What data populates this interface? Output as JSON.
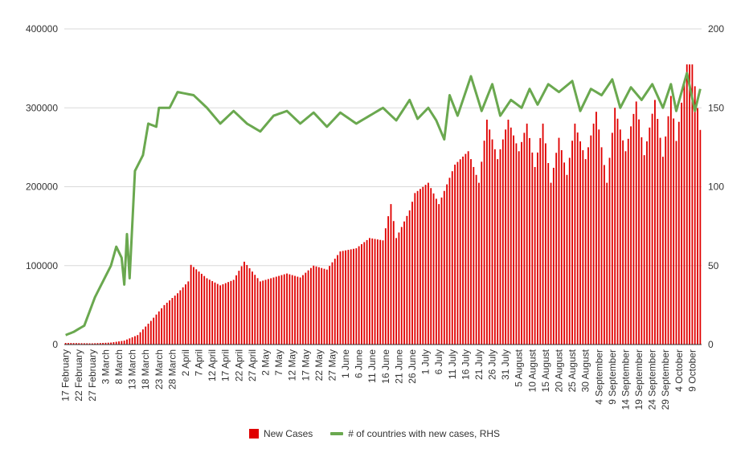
{
  "colors": {
    "bar": "#e00000",
    "line": "#6aa84f",
    "grid": "#d9d9d9",
    "axis": "#333333"
  },
  "chart_data": {
    "type": "bar",
    "x_type": "date",
    "x_start": "2020-02-17",
    "x_end": "2020-10-12",
    "grid": true,
    "legend_position": "bottom",
    "xtick_labels": [
      "17 February",
      "22 February",
      "27 February",
      "3 March",
      "8 March",
      "13 March",
      "18 March",
      "23 March",
      "28 March",
      "2 April",
      "7 April",
      "12 April",
      "17 April",
      "22 April",
      "27 April",
      "2 May",
      "7 May",
      "12 May",
      "17 May",
      "22 May",
      "27 May",
      "1 June",
      "6 June",
      "11 June",
      "16 June",
      "21 June",
      "26 June",
      "1 July",
      "6 July",
      "11 July",
      "16 July",
      "21 July",
      "26 July",
      "31 July",
      "5 August",
      "10 August",
      "15 August",
      "20 August",
      "25 August",
      "30 August",
      "4 September",
      "9 September",
      "14 September",
      "19 September",
      "24 September",
      "29 September",
      "4 October",
      "9 October"
    ],
    "y_left": {
      "ylim": [
        0,
        400000
      ],
      "ticks": [
        "0",
        "100000",
        "200000",
        "300000",
        "400000"
      ]
    },
    "y_right": {
      "ylim": [
        0,
        200
      ],
      "ticks": [
        "0",
        "50",
        "100",
        "150",
        "200"
      ]
    },
    "series": [
      {
        "name": "New Cases",
        "kind": "bar",
        "axis": "left",
        "anchors": [
          [
            "2020-02-17",
            2000
          ],
          [
            "2020-02-27",
            1500
          ],
          [
            "2020-03-05",
            2500
          ],
          [
            "2020-03-10",
            5000
          ],
          [
            "2020-03-15",
            12000
          ],
          [
            "2020-03-20",
            30000
          ],
          [
            "2020-03-25",
            50000
          ],
          [
            "2020-03-30",
            65000
          ],
          [
            "2020-04-03",
            80000
          ],
          [
            "2020-04-04",
            101000
          ],
          [
            "2020-04-10",
            84000
          ],
          [
            "2020-04-15",
            75000
          ],
          [
            "2020-04-20",
            82000
          ],
          [
            "2020-04-24",
            105000
          ],
          [
            "2020-04-30",
            80000
          ],
          [
            "2020-05-05",
            85000
          ],
          [
            "2020-05-10",
            90000
          ],
          [
            "2020-05-15",
            85000
          ],
          [
            "2020-05-20",
            100000
          ],
          [
            "2020-05-25",
            95000
          ],
          [
            "2020-05-30",
            118000
          ],
          [
            "2020-06-05",
            122000
          ],
          [
            "2020-06-10",
            135000
          ],
          [
            "2020-06-15",
            132000
          ],
          [
            "2020-06-18",
            178000
          ],
          [
            "2020-06-20",
            135000
          ],
          [
            "2020-06-25",
            170000
          ],
          [
            "2020-06-27",
            192000
          ],
          [
            "2020-07-02",
            205000
          ],
          [
            "2020-07-06",
            178000
          ],
          [
            "2020-07-12",
            228000
          ],
          [
            "2020-07-17",
            245000
          ],
          [
            "2020-07-21",
            205000
          ],
          [
            "2020-07-24",
            285000
          ],
          [
            "2020-07-28",
            235000
          ],
          [
            "2020-08-01",
            285000
          ],
          [
            "2020-08-05",
            245000
          ],
          [
            "2020-08-08",
            280000
          ],
          [
            "2020-08-11",
            225000
          ],
          [
            "2020-08-14",
            280000
          ],
          [
            "2020-08-17",
            205000
          ],
          [
            "2020-08-20",
            262000
          ],
          [
            "2020-08-23",
            215000
          ],
          [
            "2020-08-26",
            280000
          ],
          [
            "2020-08-30",
            235000
          ],
          [
            "2020-09-03",
            295000
          ],
          [
            "2020-09-07",
            205000
          ],
          [
            "2020-09-10",
            300000
          ],
          [
            "2020-09-14",
            245000
          ],
          [
            "2020-09-18",
            308000
          ],
          [
            "2020-09-21",
            240000
          ],
          [
            "2020-09-25",
            310000
          ],
          [
            "2020-09-28",
            238000
          ],
          [
            "2020-10-01",
            315000
          ],
          [
            "2020-10-03",
            258000
          ],
          [
            "2020-10-07",
            355000
          ],
          [
            "2020-10-09",
            355000
          ],
          [
            "2020-10-12",
            272000
          ]
        ]
      },
      {
        "name": "# of countries with new cases, RHS",
        "kind": "line",
        "axis": "right",
        "anchors": [
          [
            "2020-02-17",
            6
          ],
          [
            "2020-02-20",
            8
          ],
          [
            "2020-02-24",
            12
          ],
          [
            "2020-02-28",
            30
          ],
          [
            "2020-03-02",
            40
          ],
          [
            "2020-03-05",
            50
          ],
          [
            "2020-03-07",
            62
          ],
          [
            "2020-03-09",
            55
          ],
          [
            "2020-03-10",
            38
          ],
          [
            "2020-03-11",
            70
          ],
          [
            "2020-03-12",
            42
          ],
          [
            "2020-03-14",
            110
          ],
          [
            "2020-03-17",
            120
          ],
          [
            "2020-03-19",
            140
          ],
          [
            "2020-03-22",
            138
          ],
          [
            "2020-03-23",
            150
          ],
          [
            "2020-03-27",
            150
          ],
          [
            "2020-03-30",
            160
          ],
          [
            "2020-04-05",
            158
          ],
          [
            "2020-04-10",
            150
          ],
          [
            "2020-04-15",
            140
          ],
          [
            "2020-04-20",
            148
          ],
          [
            "2020-04-25",
            140
          ],
          [
            "2020-04-30",
            135
          ],
          [
            "2020-05-05",
            145
          ],
          [
            "2020-05-10",
            148
          ],
          [
            "2020-05-15",
            140
          ],
          [
            "2020-05-20",
            147
          ],
          [
            "2020-05-25",
            138
          ],
          [
            "2020-05-30",
            147
          ],
          [
            "2020-06-05",
            140
          ],
          [
            "2020-06-10",
            145
          ],
          [
            "2020-06-15",
            150
          ],
          [
            "2020-06-20",
            142
          ],
          [
            "2020-06-25",
            155
          ],
          [
            "2020-06-28",
            143
          ],
          [
            "2020-07-02",
            150
          ],
          [
            "2020-07-05",
            142
          ],
          [
            "2020-07-08",
            130
          ],
          [
            "2020-07-10",
            158
          ],
          [
            "2020-07-13",
            145
          ],
          [
            "2020-07-18",
            170
          ],
          [
            "2020-07-22",
            148
          ],
          [
            "2020-07-26",
            165
          ],
          [
            "2020-07-29",
            145
          ],
          [
            "2020-08-02",
            155
          ],
          [
            "2020-08-06",
            150
          ],
          [
            "2020-08-09",
            162
          ],
          [
            "2020-08-12",
            152
          ],
          [
            "2020-08-16",
            165
          ],
          [
            "2020-08-20",
            160
          ],
          [
            "2020-08-25",
            167
          ],
          [
            "2020-08-28",
            148
          ],
          [
            "2020-09-01",
            162
          ],
          [
            "2020-09-05",
            158
          ],
          [
            "2020-09-09",
            168
          ],
          [
            "2020-09-12",
            150
          ],
          [
            "2020-09-16",
            163
          ],
          [
            "2020-09-20",
            155
          ],
          [
            "2020-09-24",
            165
          ],
          [
            "2020-09-28",
            150
          ],
          [
            "2020-10-01",
            165
          ],
          [
            "2020-10-03",
            148
          ],
          [
            "2020-10-07",
            172
          ],
          [
            "2020-10-10",
            148
          ],
          [
            "2020-10-12",
            162
          ]
        ]
      }
    ]
  }
}
